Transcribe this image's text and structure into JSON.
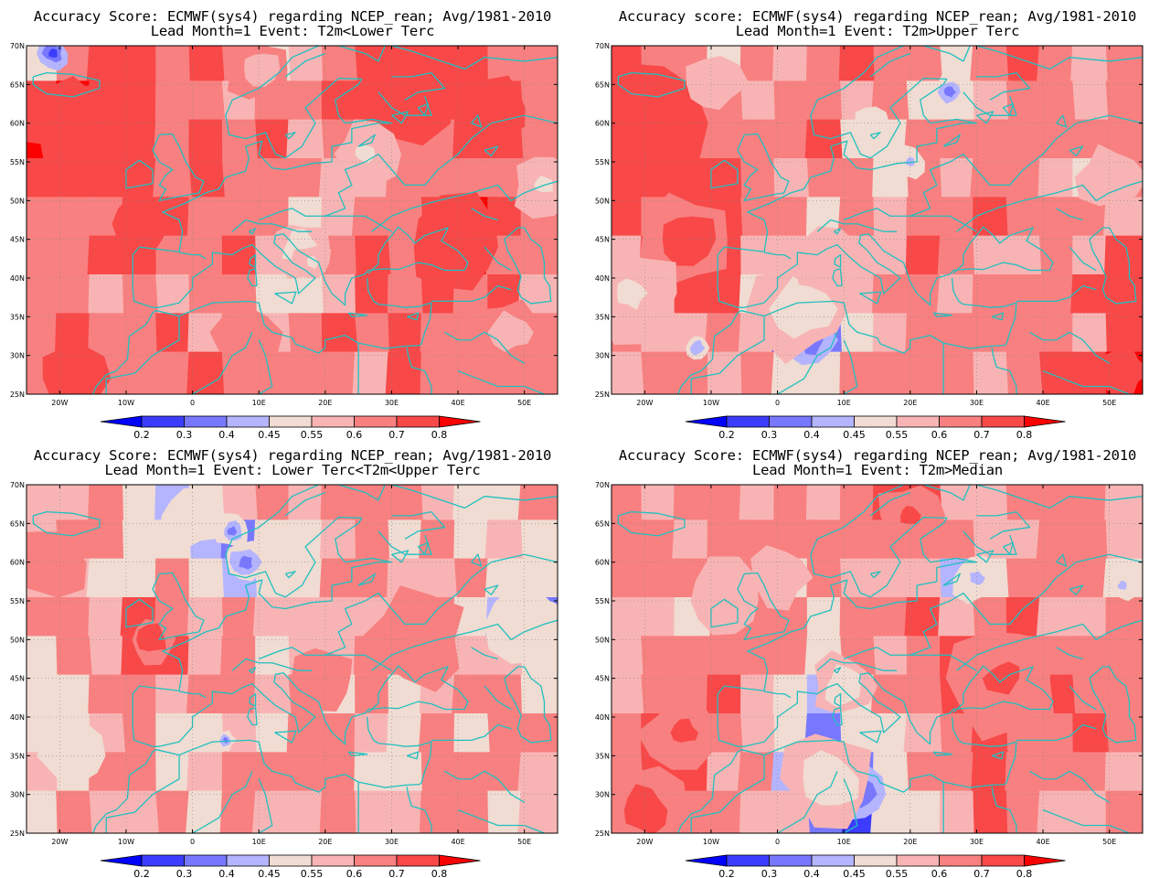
{
  "chart_data": [
    {
      "type": "heatmap",
      "title_line1": "Accuracy Score: ECMWF(sys4) regarding NCEP_rean; Avg/1981-2010",
      "title_line2": "Lead Month=1 Event: T2m<Lower Terc",
      "base": 0.66,
      "blobs": [
        {
          "lon": -14,
          "lat": 59,
          "r": 7,
          "v": 0.14
        },
        {
          "lon": -20,
          "lat": 61,
          "r": 5,
          "v": 0.1
        },
        {
          "lon": 40,
          "lat": 44,
          "r": 6,
          "v": 0.12
        },
        {
          "lon": 32,
          "lat": 64,
          "r": 6,
          "v": 0.08
        },
        {
          "lon": 46,
          "lat": 62,
          "r": 4,
          "v": 0.08
        },
        {
          "lon": 16,
          "lat": 44,
          "r": 3.5,
          "v": -0.16
        },
        {
          "lon": 18,
          "lat": 42,
          "r": 2.5,
          "v": -0.12
        },
        {
          "lon": 26,
          "lat": 56,
          "r": 4,
          "v": -0.12
        },
        {
          "lon": 10,
          "lat": 67,
          "r": 4,
          "v": -0.1
        },
        {
          "lon": 53,
          "lat": 52,
          "r": 4,
          "v": -0.12
        },
        {
          "lon": 48,
          "lat": 33,
          "r": 4,
          "v": -0.1
        },
        {
          "lon": 8,
          "lat": 33,
          "r": 4,
          "v": -0.06
        },
        {
          "lon": -21,
          "lat": 69,
          "r": 2,
          "v": -0.4
        },
        {
          "lon": -18,
          "lat": 27,
          "r": 4,
          "v": 0.12
        },
        {
          "lon": -8,
          "lat": 47,
          "r": 4,
          "v": 0.08
        }
      ]
    },
    {
      "type": "heatmap",
      "title_line1": "Accuracy score: ECMWF(sys4) regarding NCEP_rean; Avg/1981-2010",
      "title_line2": "Lead Month=1 Event: T2m>Upper Terc",
      "base": 0.64,
      "blobs": [
        {
          "lon": -20,
          "lat": 60,
          "r": 7,
          "v": 0.12
        },
        {
          "lon": -14,
          "lat": 45,
          "r": 6,
          "v": 0.1
        },
        {
          "lon": 5,
          "lat": 32,
          "r": 3,
          "v": -0.36
        },
        {
          "lon": 4,
          "lat": 36,
          "r": 6,
          "v": -0.12
        },
        {
          "lon": 26,
          "lat": 64,
          "r": 2.2,
          "v": -0.3
        },
        {
          "lon": 20,
          "lat": 55,
          "r": 2,
          "v": -0.22
        },
        {
          "lon": 14,
          "lat": 60,
          "r": 2,
          "v": -0.2
        },
        {
          "lon": -22,
          "lat": 38,
          "r": 6,
          "v": -0.1
        },
        {
          "lon": -10,
          "lat": 65,
          "r": 4,
          "v": -0.08
        },
        {
          "lon": 8,
          "lat": 42,
          "r": 4,
          "v": -0.08
        },
        {
          "lon": 50,
          "lat": 53,
          "r": 4,
          "v": -0.08
        },
        {
          "lon": -12,
          "lat": 31,
          "r": 1.5,
          "v": -0.25
        },
        {
          "lon": 52,
          "lat": 28,
          "r": 3,
          "v": 0.12
        }
      ]
    },
    {
      "type": "heatmap",
      "title_line1": "Accuracy Score: ECMWF(sys4) regarding NCEP_rean; Avg/1981-2010",
      "title_line2": "Lead Month=1 Event: Lower Terc<T2m<Upper Terc",
      "base": 0.58,
      "blobs": [
        {
          "lon": -6,
          "lat": 50,
          "r": 3,
          "v": 0.16
        },
        {
          "lon": 8,
          "lat": 60,
          "r": 3,
          "v": -0.2
        },
        {
          "lon": 6,
          "lat": 64,
          "r": 2,
          "v": -0.2
        },
        {
          "lon": 52,
          "lat": 53,
          "r": 3,
          "v": -0.2
        },
        {
          "lon": 50,
          "lat": 52,
          "r": 5,
          "v": -0.08
        },
        {
          "lon": 5,
          "lat": 37,
          "r": 1.2,
          "v": -0.2
        },
        {
          "lon": -22,
          "lat": 60,
          "r": 5,
          "v": 0.08
        },
        {
          "lon": 34,
          "lat": 50,
          "r": 6,
          "v": 0.06
        },
        {
          "lon": -18,
          "lat": 35,
          "r": 4,
          "v": -0.06
        },
        {
          "lon": 20,
          "lat": 45,
          "r": 4,
          "v": 0.04
        },
        {
          "lon": 0,
          "lat": 66,
          "r": 4,
          "v": -0.08
        }
      ]
    },
    {
      "type": "heatmap",
      "title_line1": "Accuracy Score: ECMWF(sys4) regarding NCEP_rean; Avg/1981-2010",
      "title_line2": "Lead Month=1 Event: T2m>Median",
      "base": 0.62,
      "blobs": [
        {
          "lon": 6,
          "lat": 34,
          "r": 3,
          "v": -0.3
        },
        {
          "lon": 12,
          "lat": 30,
          "r": 3.5,
          "v": -0.32
        },
        {
          "lon": 8,
          "lat": 32,
          "r": 6,
          "v": -0.12
        },
        {
          "lon": 30,
          "lat": 58,
          "r": 3,
          "v": -0.22
        },
        {
          "lon": 52,
          "lat": 57,
          "r": 2,
          "v": -0.2
        },
        {
          "lon": 10,
          "lat": 44,
          "r": 4,
          "v": -0.12
        },
        {
          "lon": -14,
          "lat": 38,
          "r": 5,
          "v": 0.1
        },
        {
          "lon": -20,
          "lat": 28,
          "r": 5,
          "v": 0.12
        },
        {
          "lon": 34,
          "lat": 45,
          "r": 7,
          "v": 0.1
        },
        {
          "lon": 20,
          "lat": 66,
          "r": 4,
          "v": 0.1
        },
        {
          "lon": -8,
          "lat": 55,
          "r": 5,
          "v": -0.06
        },
        {
          "lon": 0,
          "lat": 58,
          "r": 4,
          "v": -0.06
        }
      ]
    }
  ],
  "axes": {
    "lon_min": -25,
    "lon_max": 55,
    "lat_min": 25,
    "lat_max": 70,
    "y_ticks": [
      {
        "v": 70,
        "label": "70N"
      },
      {
        "v": 65,
        "label": "65N"
      },
      {
        "v": 60,
        "label": "60N"
      },
      {
        "v": 55,
        "label": "55N"
      },
      {
        "v": 50,
        "label": "50N"
      },
      {
        "v": 45,
        "label": "45N"
      },
      {
        "v": 40,
        "label": "40N"
      },
      {
        "v": 35,
        "label": "35N"
      },
      {
        "v": 30,
        "label": "30N"
      },
      {
        "v": 25,
        "label": "25N"
      }
    ],
    "x_ticks": [
      {
        "v": -20,
        "label": "20W"
      },
      {
        "v": -10,
        "label": "10W"
      },
      {
        "v": 0,
        "label": "0"
      },
      {
        "v": 10,
        "label": "10E"
      },
      {
        "v": 20,
        "label": "20E"
      },
      {
        "v": 30,
        "label": "30E"
      },
      {
        "v": 40,
        "label": "40E"
      },
      {
        "v": 50,
        "label": "50E"
      }
    ],
    "grid": true
  },
  "colorbar": {
    "levels": [
      0.2,
      0.3,
      0.4,
      0.45,
      0.55,
      0.6,
      0.7,
      0.8
    ],
    "labels": [
      "0.2",
      "0.3",
      "0.4",
      "0.45",
      "0.55",
      "0.6",
      "0.7",
      "0.8"
    ],
    "colors": [
      "#0000ff",
      "#3c3cff",
      "#7878ff",
      "#b4b4ff",
      "#f0dcd2",
      "#f8b4b4",
      "#f88080",
      "#f84848",
      "#fa0000"
    ]
  },
  "coast_color": "#20c0c0"
}
